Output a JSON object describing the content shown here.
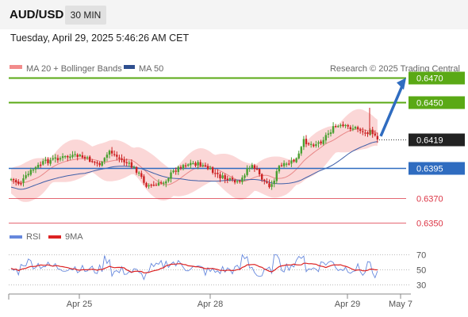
{
  "header": {
    "pair": "AUD/USD",
    "timeframe": "30 MIN",
    "datetime": "Tuesday, April 29, 2025 5:46:26 AM CET"
  },
  "legend": {
    "bb": "MA 20 + Bollinger Bands",
    "ma50": "MA 50",
    "credit": "Research © 2025 Trading Central",
    "rsi": "RSI",
    "ma9": "9MA"
  },
  "colors": {
    "green": "#5aa915",
    "blue": "#2f6cc0",
    "red": "#dc3545",
    "band": "#fbd3d3",
    "candle_up": "#49a030",
    "candle_down": "#cc2222",
    "ma50": "#3f5fa8",
    "ma20": "#e88888",
    "rsi": "#6688dd",
    "rsi_ma": "#dd2222"
  },
  "chart_data": [
    {
      "type": "candlestick",
      "ylim": [
        0.63452,
        0.64787
      ],
      "x_ticks": [
        "Apr 25",
        "Apr 28",
        "Apr 29",
        "May 7"
      ],
      "levels": [
        {
          "value": 0.647,
          "label": "0.6470",
          "kind": "resistance",
          "color": "#5aa915"
        },
        {
          "value": 0.645,
          "label": "0.6450",
          "kind": "resistance",
          "color": "#5aa915"
        },
        {
          "value": 0.6419,
          "label": "0.6419",
          "kind": "last-price",
          "color": "#222222"
        },
        {
          "value": 0.6395,
          "label": "0.6395",
          "kind": "pivot",
          "color": "#2f6cc0"
        },
        {
          "value": 0.637,
          "label": "0.6370",
          "kind": "support",
          "color": "#dc3545"
        },
        {
          "value": 0.635,
          "label": "0.6350",
          "kind": "support",
          "color": "#dc3545"
        }
      ],
      "projection": {
        "from": 0.6419,
        "to": 0.647
      }
    },
    {
      "type": "line",
      "name": "RSI",
      "ylim": [
        22,
        78
      ],
      "y_ticks": [
        70,
        50,
        30
      ]
    }
  ]
}
